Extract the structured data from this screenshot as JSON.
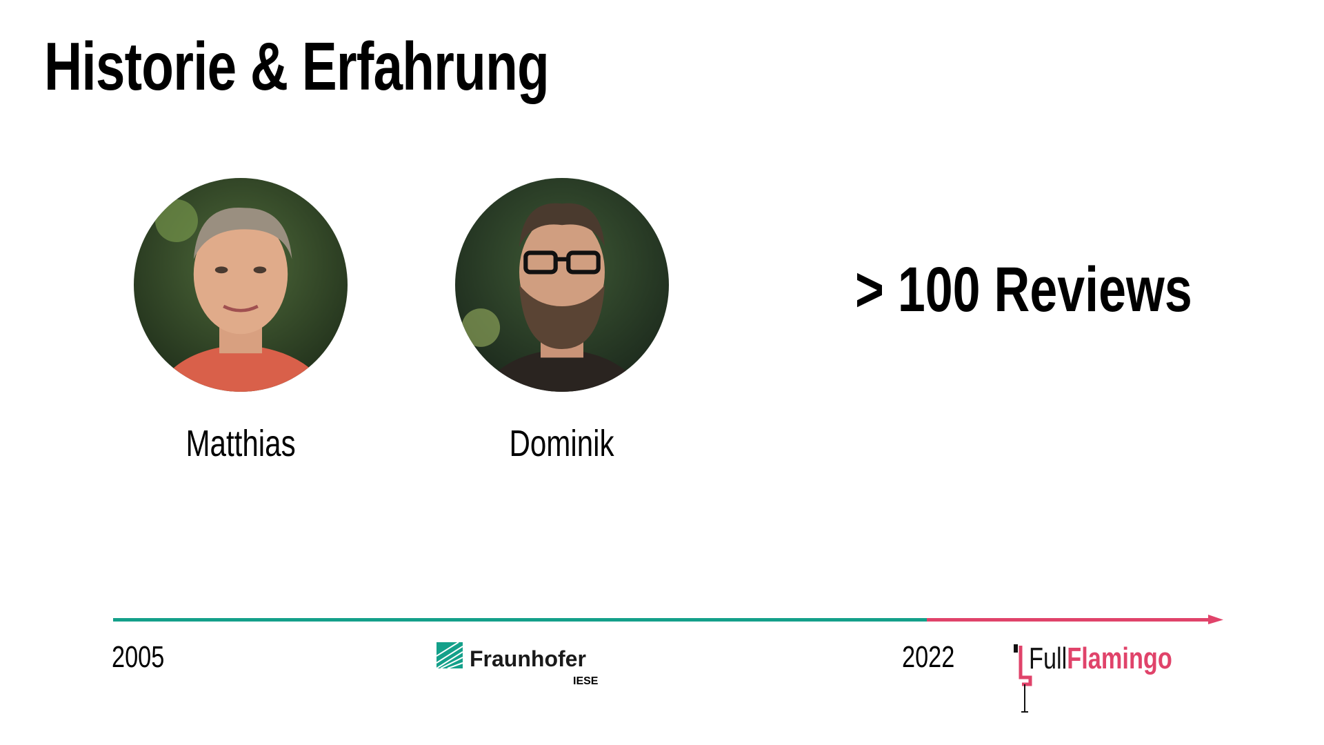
{
  "title": "Historie & Erfahrung",
  "people": [
    {
      "name": "Matthias"
    },
    {
      "name": "Dominik"
    }
  ],
  "highlight": "> 100 Reviews",
  "timeline": {
    "start_year": "2005",
    "mid_year": "2022",
    "colors": {
      "past": "#14a08a",
      "current": "#e0436a"
    },
    "logos": [
      {
        "name": "Fraunhofer",
        "sub": "IESE"
      },
      {
        "name_light": "Full",
        "name_bold": "Flamingo"
      }
    ]
  }
}
